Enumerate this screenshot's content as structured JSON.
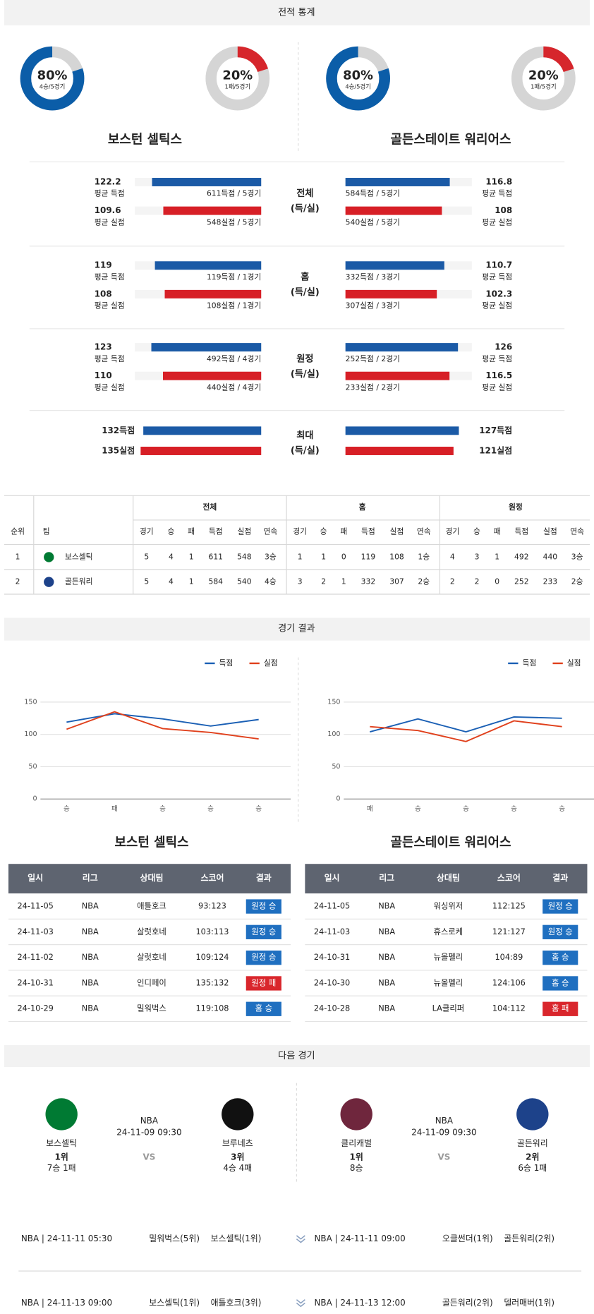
{
  "headers": {
    "stats": "전적 통계",
    "results": "경기 결과",
    "next": "다음 경기"
  },
  "donuts": [
    {
      "value": 80,
      "label": "80%",
      "sub": "4승/5경기",
      "color": "#0b5da8"
    },
    {
      "value": 20,
      "label": "20%",
      "sub": "1패/5경기",
      "color": "#d6262c"
    },
    {
      "value": 80,
      "label": "80%",
      "sub": "4승/5경기",
      "color": "#0b5da8"
    },
    {
      "value": 20,
      "label": "20%",
      "sub": "1패/5경기",
      "color": "#d6262c"
    }
  ],
  "stats": {
    "teams": [
      "보스턴 셀틱스",
      "골든스테이트 워리어스"
    ],
    "colors": [
      "#1b5aa6",
      "#d71f26"
    ],
    "groups": [
      {
        "label": [
          "전체",
          "(득/실)"
        ],
        "left": [
          {
            "value": 122.2,
            "label": "평균 득점",
            "detail": "611득점 / 5경기"
          },
          {
            "value": 109.6,
            "label": "평균 실점",
            "detail": "548실점 / 5경기"
          }
        ],
        "right": [
          {
            "value": 116.8,
            "label": "평균 득점",
            "detail": "584득점 / 5경기"
          },
          {
            "value": 108,
            "label": "평균 실점",
            "detail": "540실점 / 5경기"
          }
        ]
      },
      {
        "label": [
          "홈",
          "(득/실)"
        ],
        "left": [
          {
            "value": 119,
            "label": "평균 득점",
            "detail": "119득점 / 1경기"
          },
          {
            "value": 108,
            "label": "평균 실점",
            "detail": "108실점 / 1경기"
          }
        ],
        "right": [
          {
            "value": 110.7,
            "label": "평균 득점",
            "detail": "332득점 / 3경기"
          },
          {
            "value": 102.3,
            "label": "평균 실점",
            "detail": "307실점 / 3경기"
          }
        ]
      },
      {
        "label": [
          "원정",
          "(득/실)"
        ],
        "left": [
          {
            "value": 123,
            "label": "평균 득점",
            "detail": "492득점 / 4경기"
          },
          {
            "value": 110,
            "label": "평균 실점",
            "detail": "440실점 / 4경기"
          }
        ],
        "right": [
          {
            "value": 126,
            "label": "평균 득점",
            "detail": "252득점 / 2경기"
          },
          {
            "value": 116.5,
            "label": "평균 실점",
            "detail": "233실점 / 2경기"
          }
        ]
      }
    ],
    "max": {
      "label": [
        "최대",
        "(득/실)"
      ],
      "left": [
        {
          "value": 132,
          "label": "132득점"
        },
        {
          "value": 135,
          "label": "135실점"
        }
      ],
      "right": [
        {
          "value": 127,
          "label": "127득점"
        },
        {
          "value": 121,
          "label": "121실점"
        }
      ]
    }
  },
  "standings": {
    "columns": [
      "순위",
      "팀"
    ],
    "groups": [
      "전체",
      "홈",
      "원정"
    ],
    "subcolumns": [
      "경기",
      "승",
      "패",
      "득점",
      "실점",
      "연속"
    ],
    "rows": [
      {
        "rank": 1,
        "team": "보스셀틱",
        "logo": "#007a33",
        "cells": [
          5,
          4,
          1,
          611,
          548,
          "3승",
          1,
          1,
          0,
          119,
          108,
          "1승",
          4,
          3,
          1,
          492,
          440,
          "3승"
        ]
      },
      {
        "rank": 2,
        "team": "골든워리",
        "logo": "#1d428a",
        "cells": [
          5,
          4,
          1,
          584,
          540,
          "4승",
          3,
          2,
          1,
          332,
          307,
          "2승",
          2,
          2,
          0,
          252,
          233,
          "2승"
        ]
      }
    ]
  },
  "results": {
    "teams": [
      "보스턴 셀틱스",
      "골든스테이트 워리어스"
    ],
    "charts": [
      {
        "type": "line",
        "categories": [
          "승",
          "패",
          "승",
          "승",
          "승"
        ],
        "ylim": [
          0,
          150
        ],
        "yticks": [
          0,
          50,
          100,
          150
        ],
        "series": [
          {
            "name": "득점",
            "color": "#1a5fb4",
            "values": [
              119,
              132,
              124,
              113,
              123
            ]
          },
          {
            "name": "실점",
            "color": "#e0401c",
            "values": [
              108,
              135,
              109,
              103,
              93
            ]
          }
        ]
      },
      {
        "type": "line",
        "categories": [
          "패",
          "승",
          "승",
          "승",
          "승"
        ],
        "ylim": [
          0,
          150
        ],
        "yticks": [
          0,
          50,
          100,
          150
        ],
        "series": [
          {
            "name": "득점",
            "color": "#1a5fb4",
            "values": [
              104,
              124,
              104,
              127,
              125
            ]
          },
          {
            "name": "실점",
            "color": "#e0401c",
            "values": [
              112,
              106,
              89,
              121,
              112
            ]
          }
        ]
      }
    ],
    "columns": [
      "일시",
      "리그",
      "상대팀",
      "스코어",
      "결과"
    ],
    "tables": [
      [
        {
          "date": "24-11-05",
          "league": "NBA",
          "opponent": "애틀호크",
          "score": "93:123",
          "result": "원정 승",
          "color": "#1f6fc0"
        },
        {
          "date": "24-11-03",
          "league": "NBA",
          "opponent": "살럿호네",
          "score": "103:113",
          "result": "원정 승",
          "color": "#1f6fc0"
        },
        {
          "date": "24-11-02",
          "league": "NBA",
          "opponent": "살럿호네",
          "score": "109:124",
          "result": "원정 승",
          "color": "#1f6fc0"
        },
        {
          "date": "24-10-31",
          "league": "NBA",
          "opponent": "인디페이",
          "score": "135:132",
          "result": "원정 패",
          "color": "#d9262c"
        },
        {
          "date": "24-10-29",
          "league": "NBA",
          "opponent": "밀워벅스",
          "score": "119:108",
          "result": "홈 승",
          "color": "#1f6fc0"
        }
      ],
      [
        {
          "date": "24-11-05",
          "league": "NBA",
          "opponent": "워싱위저",
          "score": "112:125",
          "result": "원정 승",
          "color": "#1f6fc0"
        },
        {
          "date": "24-11-03",
          "league": "NBA",
          "opponent": "휴스로케",
          "score": "121:127",
          "result": "원정 승",
          "color": "#1f6fc0"
        },
        {
          "date": "24-10-31",
          "league": "NBA",
          "opponent": "뉴올펠리",
          "score": "104:89",
          "result": "홈 승",
          "color": "#1f6fc0"
        },
        {
          "date": "24-10-30",
          "league": "NBA",
          "opponent": "뉴올펠리",
          "score": "124:106",
          "result": "홈 승",
          "color": "#1f6fc0"
        },
        {
          "date": "24-10-28",
          "league": "NBA",
          "opponent": "LA클리퍼",
          "score": "104:112",
          "result": "홈 패",
          "color": "#d9262c"
        }
      ]
    ]
  },
  "next": {
    "games": [
      {
        "home": {
          "name": "보스셀틱",
          "rank": "1위",
          "record": "7승 1패",
          "logo": "#007a33"
        },
        "league": "NBA",
        "time": "24-11-09 09:30",
        "vs": "VS",
        "away": {
          "name": "브루네츠",
          "rank": "3위",
          "record": "4승 4패",
          "logo": "#111111"
        }
      },
      {
        "home": {
          "name": "클리캐벌",
          "rank": "1위",
          "record": "8승",
          "logo": "#6f263d"
        },
        "league": "NBA",
        "time": "24-11-09 09:30",
        "vs": "VS",
        "away": {
          "name": "골든워리",
          "rank": "2위",
          "record": "6승 1패",
          "logo": "#1d428a"
        }
      }
    ],
    "upcoming": [
      {
        "left": {
          "info": "NBA | 24-11-11 05:30",
          "home": "밀워벅스(5위)",
          "away": "보스셀틱(1위)"
        },
        "right": {
          "info": "NBA | 24-11-11 09:00",
          "home": "오클썬더(1위)",
          "away": "골든워리(2위)"
        }
      },
      {
        "left": {
          "info": "NBA | 24-11-13 09:00",
          "home": "보스셀틱(1위)",
          "away": "애틀호크(3위)"
        },
        "right": {
          "info": "NBA | 24-11-13 12:00",
          "home": "골든워리(2위)",
          "away": "델러매버(1위)"
        }
      }
    ]
  }
}
